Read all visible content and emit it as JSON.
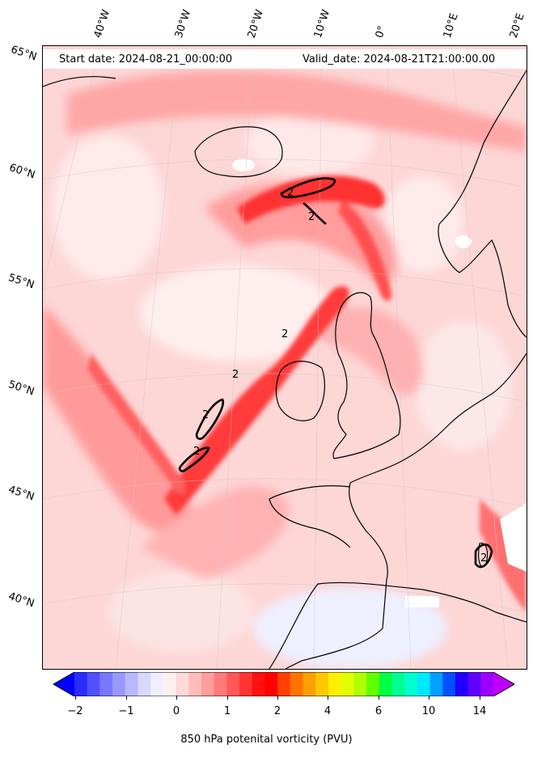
{
  "map": {
    "start_label": "Start date: 2024-08-21_00:00:00",
    "valid_label": "Valid_date: 2024-08-21T21:00:00.00",
    "lat_labels": [
      "65°N",
      "60°N",
      "55°N",
      "50°N",
      "45°N",
      "40°N"
    ],
    "lon_labels": [
      "40°W",
      "30°W",
      "20°W",
      "10°W",
      "0°",
      "10°E",
      "20°E"
    ],
    "contour_label": "2",
    "colors": {
      "land_outline": "#000000",
      "pv_low": "#fde0e0",
      "pv_mid": "#ff9a9a",
      "pv_high": "#ff2020"
    }
  },
  "colorbar": {
    "label": "850 hPa potenital vorticity (PVU)",
    "tick_labels": [
      "−2",
      "−1",
      "0",
      "1",
      "2",
      "4",
      "6",
      "10",
      "14"
    ],
    "colors": [
      "#0000ff",
      "#2b2bff",
      "#5050ff",
      "#7878ff",
      "#9898ff",
      "#b8b8ff",
      "#d8d8ff",
      "#eeeeff",
      "#fff0f0",
      "#ffd8d8",
      "#ffbcbc",
      "#ff9c9c",
      "#ff7a7a",
      "#ff5858",
      "#ff3434",
      "#ff1010",
      "#ff0000",
      "#ff4000",
      "#ff7400",
      "#ffa000",
      "#ffc800",
      "#fff000",
      "#e0ff00",
      "#b0ff00",
      "#60ff00",
      "#00ff40",
      "#00ff90",
      "#00ffd0",
      "#00e8ff",
      "#00a0ff",
      "#0050ff",
      "#2000ff",
      "#6000ff",
      "#9c00ff",
      "#c000ff"
    ]
  }
}
